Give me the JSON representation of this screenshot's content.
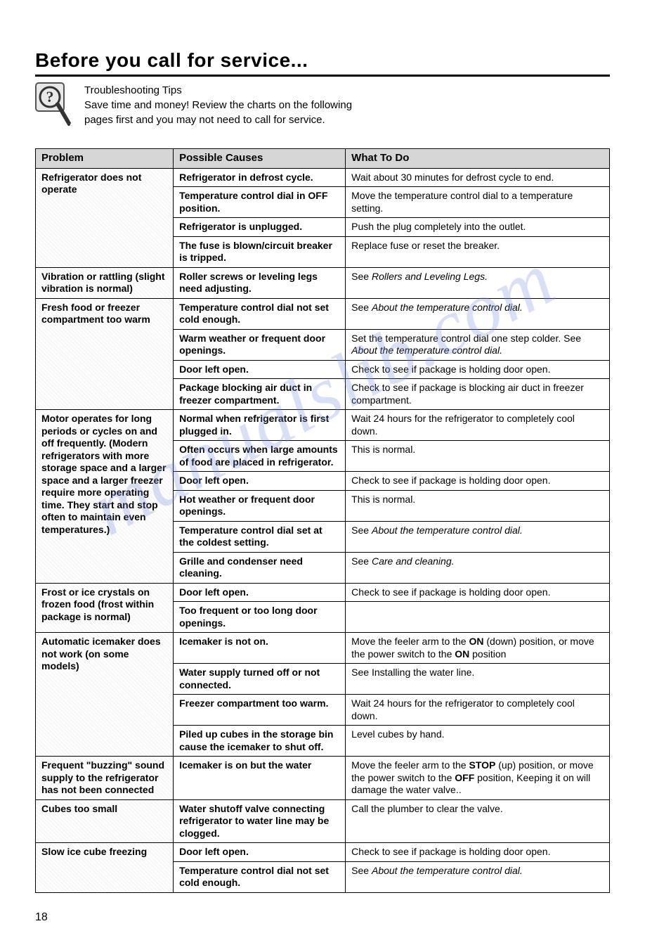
{
  "heading": "Before you call for service...",
  "intro": {
    "tips_label": "Troubleshooting Tips",
    "line1": "Save time and money! Review the charts on the following",
    "line2": "pages first and you may not need to call for service."
  },
  "watermark": "manualslib.com",
  "page_number": "18",
  "columns": {
    "problem": "Problem",
    "cause": "Possible Causes",
    "todo": "What To Do"
  },
  "groups": [
    {
      "problem": "Refrigerator does not operate",
      "rows": [
        {
          "cause": "Refrigerator in defrost cycle.",
          "todo_html": "Wait about 30 minutes for defrost cycle to end."
        },
        {
          "cause": "Temperature control dial in OFF position.",
          "todo_html": "Move the temperature control dial to a temperature setting."
        },
        {
          "cause": "Refrigerator is unplugged.",
          "todo_html": "Push the plug completely into the outlet."
        },
        {
          "cause": "The fuse is blown/circuit breaker is tripped.",
          "todo_html": "Replace fuse or reset the breaker."
        }
      ]
    },
    {
      "problem": "Vibration or rattling (slight vibration is normal)",
      "rows": [
        {
          "cause": "Roller screws or leveling legs need adjusting.",
          "todo_html": "See <span class=\"italic\">Rollers and Leveling Legs.</span>"
        }
      ]
    },
    {
      "problem": "Fresh food or freezer compartment too warm",
      "rows": [
        {
          "cause": "Temperature control dial not set cold enough.",
          "todo_html": "See <span class=\"italic\">About the temperature control dial.</span>"
        },
        {
          "cause": "Warm weather or frequent door openings.",
          "todo_html": "Set the temperature control dial one step colder. See <span class=\"italic\">About the temperature control dial.</span>"
        },
        {
          "cause": "Door left open.",
          "todo_html": "Check to see if package is holding door open."
        },
        {
          "cause": "Package blocking air duct in freezer compartment.",
          "todo_html": "Check to see if package is blocking air duct in freezer compartment."
        }
      ]
    },
    {
      "problem": "Motor operates for long periods or cycles on and off frequently. (Modern refrigerators with more storage space and a larger space and a larger freezer require more operating time. They start and stop often to maintain even temperatures.)",
      "rows": [
        {
          "cause": "Normal when refrigerator is first plugged in.",
          "todo_html": "Wait 24 hours for the refrigerator to completely cool down."
        },
        {
          "cause": "Often occurs when large amounts of food are placed in refrigerator.",
          "todo_html": "This is normal."
        },
        {
          "cause": "Door left open.",
          "todo_html": "Check to see if package is holding door open."
        },
        {
          "cause": "Hot weather or frequent door openings.",
          "todo_html": "This is normal."
        },
        {
          "cause": "Temperature control dial set at the coldest setting.",
          "todo_html": "See <span class=\"italic\">About the temperature control dial.</span>"
        },
        {
          "cause": "Grille and condenser need cleaning.",
          "todo_html": "See <span class=\"italic\">Care and cleaning.</span>"
        }
      ]
    },
    {
      "problem": "Frost or ice crystals on frozen food (frost within package is normal)",
      "rows": [
        {
          "cause": "Door left open.",
          "todo_html": "Check to see if package is holding door open."
        },
        {
          "cause": "Too frequent or too long door openings.",
          "todo_html": ""
        }
      ]
    },
    {
      "problem": "Automatic icemaker does not work (on some models)",
      "rows": [
        {
          "cause": "Icemaker is not on.",
          "todo_html": "Move the feeler arm to the <span class=\"bold\">ON</span> (down) position, or move the power switch to the <span class=\"bold\">ON</span> position"
        },
        {
          "cause": "Water supply turned off or not connected.",
          "todo_html": "See Installing the water line."
        },
        {
          "cause": "Freezer compartment too warm.",
          "todo_html": "Wait 24 hours for the refrigerator to completely cool down."
        },
        {
          "cause": "Piled up cubes in the storage bin cause the icemaker to shut off.",
          "todo_html": "Level cubes by hand."
        }
      ]
    },
    {
      "problem": "Frequent \"buzzing\" sound supply to the refrigerator has not been connected",
      "rows": [
        {
          "cause": "Icemaker is on but the water",
          "todo_html": "Move the feeler arm to the <span class=\"bold\">STOP</span> (up) position, or move the power switch to the <span class=\"bold\">OFF</span> position, Keeping it  on will damage the water valve.."
        }
      ]
    },
    {
      "problem": "Cubes too small",
      "rows": [
        {
          "cause": "Water shutoff valve connecting refrigerator to water line may be clogged.",
          "todo_html": "Call the plumber to clear the valve."
        }
      ]
    },
    {
      "problem": "Slow ice cube freezing",
      "rows": [
        {
          "cause": "Door left open.",
          "todo_html": "Check to see if package is holding door open."
        },
        {
          "cause": "Temperature control dial not set cold enough.",
          "todo_html": "See <span class=\"italic\">About the temperature control dial.</span>"
        }
      ]
    }
  ]
}
